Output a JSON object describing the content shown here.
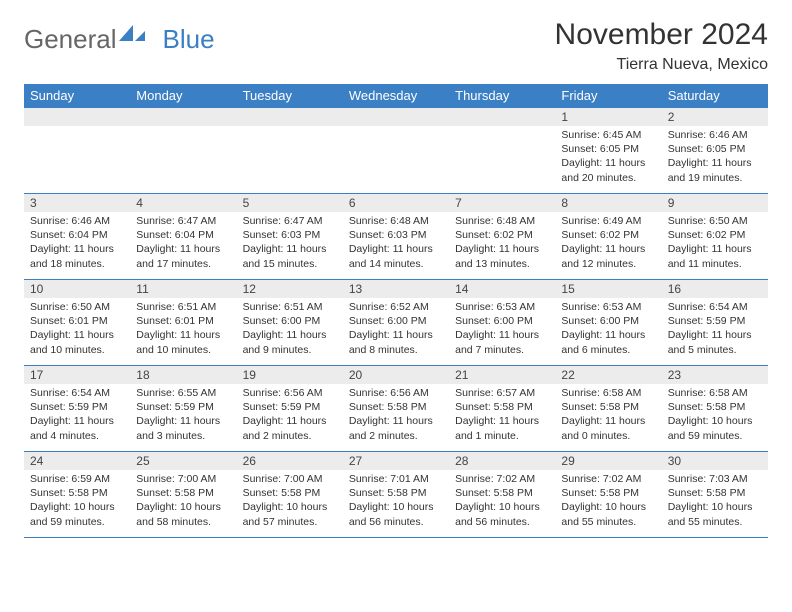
{
  "logo": {
    "part1": "General",
    "part2": "Blue"
  },
  "title": "November 2024",
  "subtitle": "Tierra Nueva, Mexico",
  "headerColor": "#3b7fc4",
  "dowBg": "#3b7fc4",
  "dayNumBg": "#ececec",
  "dows": [
    "Sunday",
    "Monday",
    "Tuesday",
    "Wednesday",
    "Thursday",
    "Friday",
    "Saturday"
  ],
  "weeks": [
    [
      null,
      null,
      null,
      null,
      null,
      {
        "n": "1",
        "sr": "6:45 AM",
        "ss": "6:05 PM",
        "dl": "11 hours and 20 minutes."
      },
      {
        "n": "2",
        "sr": "6:46 AM",
        "ss": "6:05 PM",
        "dl": "11 hours and 19 minutes."
      }
    ],
    [
      {
        "n": "3",
        "sr": "6:46 AM",
        "ss": "6:04 PM",
        "dl": "11 hours and 18 minutes."
      },
      {
        "n": "4",
        "sr": "6:47 AM",
        "ss": "6:04 PM",
        "dl": "11 hours and 17 minutes."
      },
      {
        "n": "5",
        "sr": "6:47 AM",
        "ss": "6:03 PM",
        "dl": "11 hours and 15 minutes."
      },
      {
        "n": "6",
        "sr": "6:48 AM",
        "ss": "6:03 PM",
        "dl": "11 hours and 14 minutes."
      },
      {
        "n": "7",
        "sr": "6:48 AM",
        "ss": "6:02 PM",
        "dl": "11 hours and 13 minutes."
      },
      {
        "n": "8",
        "sr": "6:49 AM",
        "ss": "6:02 PM",
        "dl": "11 hours and 12 minutes."
      },
      {
        "n": "9",
        "sr": "6:50 AM",
        "ss": "6:02 PM",
        "dl": "11 hours and 11 minutes."
      }
    ],
    [
      {
        "n": "10",
        "sr": "6:50 AM",
        "ss": "6:01 PM",
        "dl": "11 hours and 10 minutes."
      },
      {
        "n": "11",
        "sr": "6:51 AM",
        "ss": "6:01 PM",
        "dl": "11 hours and 10 minutes."
      },
      {
        "n": "12",
        "sr": "6:51 AM",
        "ss": "6:00 PM",
        "dl": "11 hours and 9 minutes."
      },
      {
        "n": "13",
        "sr": "6:52 AM",
        "ss": "6:00 PM",
        "dl": "11 hours and 8 minutes."
      },
      {
        "n": "14",
        "sr": "6:53 AM",
        "ss": "6:00 PM",
        "dl": "11 hours and 7 minutes."
      },
      {
        "n": "15",
        "sr": "6:53 AM",
        "ss": "6:00 PM",
        "dl": "11 hours and 6 minutes."
      },
      {
        "n": "16",
        "sr": "6:54 AM",
        "ss": "5:59 PM",
        "dl": "11 hours and 5 minutes."
      }
    ],
    [
      {
        "n": "17",
        "sr": "6:54 AM",
        "ss": "5:59 PM",
        "dl": "11 hours and 4 minutes."
      },
      {
        "n": "18",
        "sr": "6:55 AM",
        "ss": "5:59 PM",
        "dl": "11 hours and 3 minutes."
      },
      {
        "n": "19",
        "sr": "6:56 AM",
        "ss": "5:59 PM",
        "dl": "11 hours and 2 minutes."
      },
      {
        "n": "20",
        "sr": "6:56 AM",
        "ss": "5:58 PM",
        "dl": "11 hours and 2 minutes."
      },
      {
        "n": "21",
        "sr": "6:57 AM",
        "ss": "5:58 PM",
        "dl": "11 hours and 1 minute."
      },
      {
        "n": "22",
        "sr": "6:58 AM",
        "ss": "5:58 PM",
        "dl": "11 hours and 0 minutes."
      },
      {
        "n": "23",
        "sr": "6:58 AM",
        "ss": "5:58 PM",
        "dl": "10 hours and 59 minutes."
      }
    ],
    [
      {
        "n": "24",
        "sr": "6:59 AM",
        "ss": "5:58 PM",
        "dl": "10 hours and 59 minutes."
      },
      {
        "n": "25",
        "sr": "7:00 AM",
        "ss": "5:58 PM",
        "dl": "10 hours and 58 minutes."
      },
      {
        "n": "26",
        "sr": "7:00 AM",
        "ss": "5:58 PM",
        "dl": "10 hours and 57 minutes."
      },
      {
        "n": "27",
        "sr": "7:01 AM",
        "ss": "5:58 PM",
        "dl": "10 hours and 56 minutes."
      },
      {
        "n": "28",
        "sr": "7:02 AM",
        "ss": "5:58 PM",
        "dl": "10 hours and 56 minutes."
      },
      {
        "n": "29",
        "sr": "7:02 AM",
        "ss": "5:58 PM",
        "dl": "10 hours and 55 minutes."
      },
      {
        "n": "30",
        "sr": "7:03 AM",
        "ss": "5:58 PM",
        "dl": "10 hours and 55 minutes."
      }
    ]
  ],
  "labels": {
    "sunrise": "Sunrise:",
    "sunset": "Sunset:",
    "daylight": "Daylight:"
  }
}
